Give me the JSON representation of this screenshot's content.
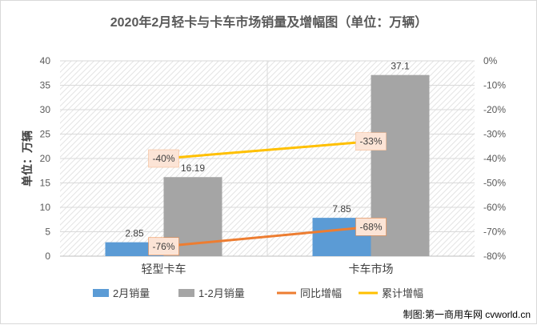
{
  "chart_data": {
    "type": "bar",
    "title": "2020年2月轻卡与卡车市场销量及增幅图（单位：万辆）",
    "ylabel": "单位：万辆",
    "categories": [
      "轻型卡车",
      "卡车市场"
    ],
    "ylim": [
      0,
      40
    ],
    "y2lim": [
      -80,
      0
    ],
    "yticks": [
      "0",
      "5",
      "10",
      "15",
      "20",
      "25",
      "30",
      "35",
      "40"
    ],
    "y2ticks": [
      "-80%",
      "-70%",
      "-60%",
      "-50%",
      "-40%",
      "-30%",
      "-20%",
      "-10%",
      "0%"
    ],
    "series": [
      {
        "name": "2月销量",
        "kind": "bar",
        "axis": "left",
        "color": "#5b9bd5",
        "values": [
          2.85,
          7.85
        ],
        "labels": [
          "2.85",
          "7.85"
        ]
      },
      {
        "name": "1-2月销量",
        "kind": "bar",
        "axis": "left",
        "color": "#a5a5a5",
        "values": [
          16.19,
          37.1
        ],
        "labels": [
          "16.19",
          "37.1"
        ]
      },
      {
        "name": "同比增幅",
        "kind": "line",
        "axis": "right",
        "color": "#ed7d31",
        "values": [
          -76,
          -68
        ],
        "labels": [
          "-76%",
          "-68%"
        ]
      },
      {
        "name": "累计增幅",
        "kind": "line",
        "axis": "right",
        "color": "#ffc000",
        "values": [
          -40,
          -33
        ],
        "labels": [
          "-40%",
          "-33%"
        ]
      }
    ]
  },
  "watermark": "制图:第一商用车网 cvworld.cn"
}
